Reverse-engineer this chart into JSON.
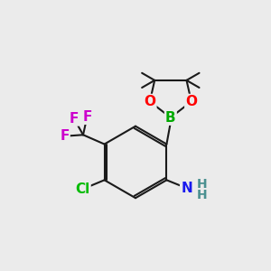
{
  "background_color": "#ebebeb",
  "bond_color": "#1a1a1a",
  "bond_width": 1.5,
  "atom_colors": {
    "B": "#00aa00",
    "O": "#ff0000",
    "F": "#cc00cc",
    "Cl": "#00bb00",
    "N": "#1a1aee",
    "H_NH2": "#4a9090",
    "C": "#1a1a1a"
  },
  "font_size_atom": 11,
  "font_size_methyl": 9,
  "fig_size": [
    3.0,
    3.0
  ],
  "dpi": 100
}
